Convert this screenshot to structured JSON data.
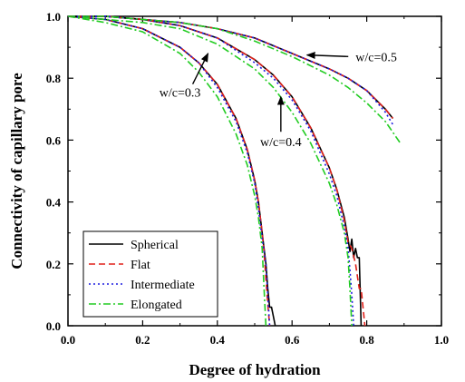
{
  "chart_data": {
    "type": "line",
    "title": "",
    "xlabel": "Degree of hydration",
    "ylabel": "Connectivity of capillary pore",
    "xlim": [
      0.0,
      1.0
    ],
    "ylim": [
      0.0,
      1.0
    ],
    "x_ticks": [
      "0.0",
      "0.2",
      "0.4",
      "0.6",
      "0.8",
      "1.0"
    ],
    "y_ticks": [
      "0.0",
      "0.2",
      "0.4",
      "0.6",
      "0.8",
      "1.0"
    ],
    "grid": false,
    "legend_position": "bottom-left",
    "legend": [
      "Spherical",
      "Flat",
      "Intermediate",
      "Elongated"
    ],
    "annotations": [
      {
        "text": "w/c=0.3",
        "x": 0.3,
        "y": 0.74,
        "arrow_to": [
          0.375,
          0.88
        ]
      },
      {
        "text": "w/c=0.4",
        "x": 0.57,
        "y": 0.58,
        "arrow_to": [
          0.57,
          0.74
        ]
      },
      {
        "text": "w/c=0.5",
        "x": 0.77,
        "y": 0.87,
        "arrow_to": [
          0.64,
          0.875
        ]
      }
    ],
    "series": [
      {
        "name": "Spherical",
        "color": "#000000",
        "dash": "solid",
        "group": "w/c=0.3",
        "x": [
          0.0,
          0.1,
          0.2,
          0.3,
          0.35,
          0.4,
          0.45,
          0.48,
          0.5,
          0.51,
          0.52,
          0.53,
          0.535,
          0.54,
          0.545,
          0.55,
          0.555
        ],
        "y": [
          1.0,
          0.99,
          0.96,
          0.9,
          0.85,
          0.78,
          0.67,
          0.57,
          0.47,
          0.4,
          0.3,
          0.2,
          0.12,
          0.06,
          0.06,
          0.03,
          0.0
        ]
      },
      {
        "name": "Flat",
        "color": "#e0201a",
        "dash": "dashed",
        "group": "w/c=0.3",
        "x": [
          0.0,
          0.1,
          0.2,
          0.3,
          0.35,
          0.4,
          0.45,
          0.48,
          0.5,
          0.51,
          0.52,
          0.525,
          0.53,
          0.535,
          0.54
        ],
        "y": [
          1.0,
          0.99,
          0.96,
          0.9,
          0.85,
          0.78,
          0.67,
          0.57,
          0.47,
          0.4,
          0.3,
          0.24,
          0.15,
          0.07,
          0.0
        ]
      },
      {
        "name": "Intermediate",
        "color": "#1a1ae0",
        "dash": "dotted",
        "group": "w/c=0.3",
        "x": [
          0.0,
          0.1,
          0.2,
          0.3,
          0.35,
          0.4,
          0.45,
          0.48,
          0.5,
          0.51,
          0.52,
          0.525,
          0.53,
          0.535,
          0.54
        ],
        "y": [
          1.0,
          0.99,
          0.96,
          0.9,
          0.85,
          0.77,
          0.66,
          0.56,
          0.46,
          0.38,
          0.28,
          0.24,
          0.2,
          0.1,
          0.0
        ]
      },
      {
        "name": "Elongated",
        "color": "#22cc22",
        "dash": "dashdot",
        "group": "w/c=0.3",
        "x": [
          0.0,
          0.1,
          0.2,
          0.3,
          0.35,
          0.4,
          0.45,
          0.48,
          0.5,
          0.51,
          0.52,
          0.525,
          0.53
        ],
        "y": [
          1.0,
          0.98,
          0.95,
          0.88,
          0.82,
          0.74,
          0.62,
          0.52,
          0.42,
          0.35,
          0.25,
          0.12,
          0.0
        ]
      },
      {
        "name": "Spherical",
        "color": "#000000",
        "dash": "solid",
        "group": "w/c=0.4",
        "x": [
          0.0,
          0.1,
          0.2,
          0.3,
          0.4,
          0.5,
          0.55,
          0.6,
          0.65,
          0.7,
          0.72,
          0.74,
          0.75,
          0.755,
          0.76,
          0.765,
          0.77,
          0.775,
          0.78,
          0.785
        ],
        "y": [
          1.0,
          1.0,
          0.99,
          0.97,
          0.93,
          0.86,
          0.81,
          0.74,
          0.64,
          0.51,
          0.44,
          0.35,
          0.28,
          0.24,
          0.28,
          0.22,
          0.25,
          0.22,
          0.22,
          0.0
        ]
      },
      {
        "name": "Flat",
        "color": "#e0201a",
        "dash": "dashed",
        "group": "w/c=0.4",
        "x": [
          0.0,
          0.1,
          0.2,
          0.3,
          0.4,
          0.5,
          0.55,
          0.6,
          0.65,
          0.7,
          0.72,
          0.74,
          0.75,
          0.76,
          0.77,
          0.78,
          0.785,
          0.79,
          0.795
        ],
        "y": [
          1.0,
          1.0,
          0.99,
          0.97,
          0.93,
          0.86,
          0.81,
          0.74,
          0.64,
          0.51,
          0.44,
          0.34,
          0.27,
          0.25,
          0.2,
          0.12,
          0.12,
          0.06,
          0.0
        ]
      },
      {
        "name": "Intermediate",
        "color": "#1a1ae0",
        "dash": "dotted",
        "group": "w/c=0.4",
        "x": [
          0.0,
          0.1,
          0.2,
          0.3,
          0.4,
          0.5,
          0.55,
          0.6,
          0.65,
          0.7,
          0.72,
          0.74,
          0.75,
          0.755,
          0.76,
          0.765
        ],
        "y": [
          1.0,
          1.0,
          0.99,
          0.97,
          0.93,
          0.85,
          0.8,
          0.73,
          0.63,
          0.49,
          0.42,
          0.32,
          0.25,
          0.18,
          0.1,
          0.0
        ]
      },
      {
        "name": "Elongated",
        "color": "#22cc22",
        "dash": "dashdot",
        "group": "w/c=0.4",
        "x": [
          0.0,
          0.1,
          0.2,
          0.3,
          0.4,
          0.5,
          0.55,
          0.6,
          0.65,
          0.7,
          0.72,
          0.74,
          0.75,
          0.755,
          0.76
        ],
        "y": [
          1.0,
          0.99,
          0.98,
          0.96,
          0.91,
          0.83,
          0.77,
          0.69,
          0.59,
          0.46,
          0.39,
          0.3,
          0.22,
          0.12,
          0.0
        ]
      },
      {
        "name": "Spherical",
        "color": "#000000",
        "dash": "solid",
        "group": "w/c=0.5",
        "x": [
          0.0,
          0.1,
          0.2,
          0.3,
          0.4,
          0.5,
          0.6,
          0.7,
          0.75,
          0.8,
          0.85,
          0.87
        ],
        "y": [
          1.0,
          1.0,
          0.99,
          0.98,
          0.96,
          0.93,
          0.88,
          0.83,
          0.8,
          0.76,
          0.7,
          0.67
        ]
      },
      {
        "name": "Flat",
        "color": "#e0201a",
        "dash": "dashed",
        "group": "w/c=0.5",
        "x": [
          0.0,
          0.1,
          0.2,
          0.3,
          0.4,
          0.5,
          0.6,
          0.7,
          0.75,
          0.8,
          0.85,
          0.87
        ],
        "y": [
          1.0,
          1.0,
          0.99,
          0.98,
          0.96,
          0.93,
          0.88,
          0.83,
          0.8,
          0.76,
          0.7,
          0.67
        ]
      },
      {
        "name": "Intermediate",
        "color": "#1a1ae0",
        "dash": "dotted",
        "group": "w/c=0.5",
        "x": [
          0.0,
          0.1,
          0.2,
          0.3,
          0.4,
          0.5,
          0.6,
          0.7,
          0.75,
          0.8,
          0.85,
          0.87
        ],
        "y": [
          1.0,
          1.0,
          0.99,
          0.98,
          0.96,
          0.93,
          0.88,
          0.83,
          0.8,
          0.76,
          0.69,
          0.65
        ]
      },
      {
        "name": "Elongated",
        "color": "#22cc22",
        "dash": "dashdot",
        "group": "w/c=0.5",
        "x": [
          0.0,
          0.1,
          0.2,
          0.3,
          0.4,
          0.5,
          0.6,
          0.7,
          0.75,
          0.8,
          0.85,
          0.89
        ],
        "y": [
          1.0,
          1.0,
          0.99,
          0.98,
          0.96,
          0.92,
          0.87,
          0.81,
          0.77,
          0.72,
          0.66,
          0.59
        ]
      }
    ]
  }
}
